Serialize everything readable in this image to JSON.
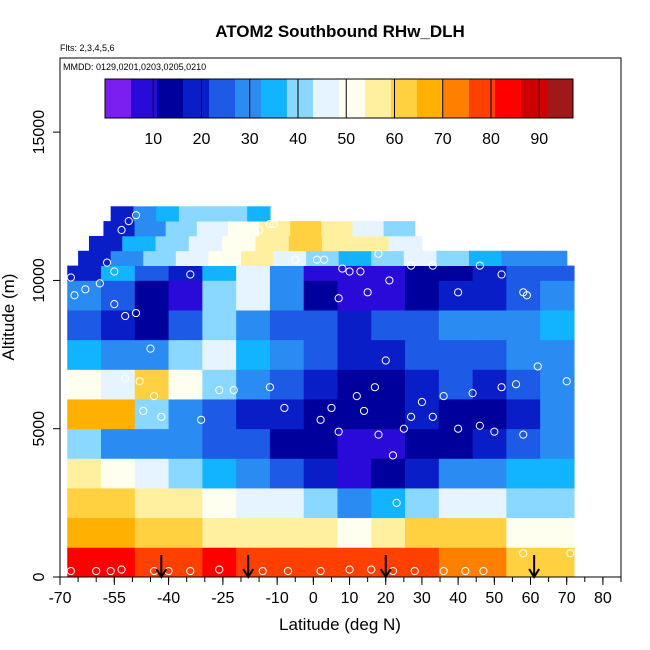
{
  "chart_data": {
    "type": "heatmap",
    "title": "ATOM2 Southbound RHw_DLH",
    "flights_note": "Flts: 2,3,4,5,6",
    "dates_note": "MMDD: 0129,0201,0203,0205,0210",
    "xlabel": "Latitude (deg N)",
    "ylabel": "Altitude (m)",
    "xlim": [
      -70,
      85
    ],
    "ylim": [
      0,
      17500
    ],
    "x_ticks": [
      -70,
      -55,
      -40,
      -25,
      -10,
      0,
      10,
      20,
      30,
      40,
      50,
      60,
      70,
      80
    ],
    "x_tick_labels": [
      "-70",
      "-55",
      "-40",
      "-25",
      "-10",
      "0",
      "10",
      "20",
      "30",
      "40",
      "50",
      "60",
      "70",
      "80"
    ],
    "y_ticks": [
      0,
      5000,
      10000,
      15000
    ],
    "y_tick_labels": [
      "0",
      "5000",
      "10000",
      "15000"
    ],
    "colorbar": {
      "min": 0,
      "max": 97,
      "ticks": [
        10,
        20,
        30,
        40,
        50,
        60,
        70,
        80,
        90
      ],
      "tick_labels": [
        "10",
        "20",
        "30",
        "40",
        "50",
        "60",
        "70",
        "80",
        "90"
      ],
      "colors": [
        "#7a1ff0",
        "#2a0ad8",
        "#00009c",
        "#0a1ec8",
        "#1d5ae6",
        "#2a8cf2",
        "#12b4ff",
        "#8ad8ff",
        "#e6f4ff",
        "#fffff0",
        "#fff0a0",
        "#ffd040",
        "#ffb000",
        "#ff8000",
        "#ff4000",
        "#ff0000",
        "#d00000",
        "#a01818"
      ]
    },
    "field_bands": [
      {
        "alt": [
          0,
          1000
        ],
        "lat": [
          -68,
          72
        ],
        "values": [
          82,
          82,
          80,
          80,
          82,
          80,
          78,
          78,
          76,
          78,
          78,
          74,
          72,
          62,
          60
        ]
      },
      {
        "alt": [
          1000,
          2000
        ],
        "lat": [
          -68,
          72
        ],
        "values": [
          70,
          68,
          64,
          60,
          58,
          56,
          56,
          54,
          50,
          56,
          60,
          62,
          60,
          52,
          50
        ]
      },
      {
        "alt": [
          2000,
          3000
        ],
        "lat": [
          -68,
          72
        ],
        "values": [
          62,
          60,
          58,
          54,
          50,
          48,
          44,
          40,
          28,
          34,
          40,
          44,
          46,
          42,
          40
        ]
      },
      {
        "alt": [
          3000,
          4000
        ],
        "lat": [
          -68,
          72
        ],
        "values": [
          56,
          50,
          44,
          40,
          36,
          30,
          26,
          20,
          10,
          14,
          20,
          28,
          30,
          34,
          36
        ]
      },
      {
        "alt": [
          4000,
          5000
        ],
        "lat": [
          -68,
          72
        ],
        "values": [
          40,
          32,
          30,
          28,
          26,
          22,
          16,
          12,
          8,
          10,
          14,
          16,
          20,
          26,
          30
        ]
      },
      {
        "alt": [
          5000,
          6000
        ],
        "lat": [
          -68,
          72
        ],
        "values": [
          66,
          70,
          40,
          30,
          24,
          20,
          18,
          14,
          12,
          14,
          18,
          16,
          14,
          20,
          28
        ]
      },
      {
        "alt": [
          6000,
          7000
        ],
        "lat": [
          -68,
          72
        ],
        "values": [
          52,
          46,
          60,
          50,
          40,
          32,
          26,
          18,
          14,
          16,
          20,
          22,
          18,
          24,
          30
        ]
      },
      {
        "alt": [
          7000,
          8000
        ],
        "lat": [
          -68,
          72
        ],
        "values": [
          34,
          30,
          28,
          40,
          44,
          36,
          30,
          24,
          18,
          20,
          24,
          26,
          24,
          28,
          32
        ]
      },
      {
        "alt": [
          8000,
          9000
        ],
        "lat": [
          -68,
          72
        ],
        "values": [
          26,
          18,
          16,
          22,
          40,
          30,
          24,
          22,
          20,
          22,
          26,
          30,
          28,
          30,
          34
        ]
      },
      {
        "alt": [
          9000,
          10000
        ],
        "lat": [
          -68,
          72
        ],
        "values": [
          30,
          24,
          14,
          10,
          38,
          44,
          28,
          12,
          8,
          10,
          14,
          18,
          20,
          24,
          28
        ]
      },
      {
        "alt": [
          10000,
          10500
        ],
        "lat": [
          -68,
          72
        ],
        "values": [
          20,
          36,
          24,
          18,
          34,
          46,
          30,
          10,
          6,
          8,
          12,
          16,
          18,
          22,
          26
        ]
      },
      {
        "alt": [
          10500,
          11000
        ],
        "lat": [
          -65,
          70
        ],
        "values": [
          18,
          30,
          40,
          44,
          50,
          56,
          46,
          40,
          36,
          38,
          44,
          40,
          34,
          30,
          28
        ]
      },
      {
        "alt": [
          11000,
          11500
        ],
        "lat": [
          -62,
          30
        ],
        "values": [
          20,
          34,
          40,
          46,
          52,
          58,
          62,
          58,
          54,
          48
        ]
      },
      {
        "alt": [
          11500,
          12000
        ],
        "lat": [
          -58,
          28
        ],
        "values": [
          18,
          30,
          38,
          44,
          50,
          56,
          60,
          54,
          44,
          38
        ]
      },
      {
        "alt": [
          12000,
          12500
        ],
        "lat": [
          -56,
          -12
        ],
        "values": [
          20,
          28,
          34,
          38,
          42,
          40,
          36
        ]
      }
    ],
    "sample_points": [
      {
        "lat": -67,
        "alt": 10100
      },
      {
        "lat": -66,
        "alt": 9500
      },
      {
        "lat": -63,
        "alt": 9700
      },
      {
        "lat": -59,
        "alt": 9900
      },
      {
        "lat": -57,
        "alt": 10600
      },
      {
        "lat": -55,
        "alt": 10300
      },
      {
        "lat": -53,
        "alt": 11700
      },
      {
        "lat": -51,
        "alt": 12000
      },
      {
        "lat": -49,
        "alt": 12200
      },
      {
        "lat": -55,
        "alt": 9200
      },
      {
        "lat": -52,
        "alt": 8800
      },
      {
        "lat": -49,
        "alt": 8900
      },
      {
        "lat": -45,
        "alt": 7700
      },
      {
        "lat": -52,
        "alt": 6700
      },
      {
        "lat": -48,
        "alt": 6600
      },
      {
        "lat": -44,
        "alt": 6100
      },
      {
        "lat": -47,
        "alt": 5600
      },
      {
        "lat": -42,
        "alt": 5400
      },
      {
        "lat": -36,
        "alt": 6500
      },
      {
        "lat": -31,
        "alt": 5300
      },
      {
        "lat": -26,
        "alt": 6300
      },
      {
        "lat": -22,
        "alt": 6300
      },
      {
        "lat": -12,
        "alt": 6400
      },
      {
        "lat": -8,
        "alt": 5700
      },
      {
        "lat": 2,
        "alt": 5300
      },
      {
        "lat": 5,
        "alt": 5700
      },
      {
        "lat": 7,
        "alt": 4900
      },
      {
        "lat": 12,
        "alt": 6100
      },
      {
        "lat": 14,
        "alt": 5600
      },
      {
        "lat": 17,
        "alt": 6400
      },
      {
        "lat": 18,
        "alt": 4800
      },
      {
        "lat": 20,
        "alt": 7300
      },
      {
        "lat": 22,
        "alt": 4100
      },
      {
        "lat": 23,
        "alt": 2500
      },
      {
        "lat": 25,
        "alt": 5000
      },
      {
        "lat": 27,
        "alt": 5400
      },
      {
        "lat": 30,
        "alt": 5900
      },
      {
        "lat": 33,
        "alt": 5400
      },
      {
        "lat": 36,
        "alt": 6100
      },
      {
        "lat": 40,
        "alt": 5000
      },
      {
        "lat": 44,
        "alt": 6200
      },
      {
        "lat": 46,
        "alt": 5100
      },
      {
        "lat": 50,
        "alt": 4900
      },
      {
        "lat": 52,
        "alt": 6400
      },
      {
        "lat": 56,
        "alt": 6500
      },
      {
        "lat": 58,
        "alt": 4800
      },
      {
        "lat": 62,
        "alt": 7100
      },
      {
        "lat": 70,
        "alt": 6600
      },
      {
        "lat": -5,
        "alt": 10700
      },
      {
        "lat": 1,
        "alt": 10700
      },
      {
        "lat": 3,
        "alt": 10700
      },
      {
        "lat": 8,
        "alt": 10400
      },
      {
        "lat": 10,
        "alt": 10300
      },
      {
        "lat": 13,
        "alt": 10300
      },
      {
        "lat": 15,
        "alt": 9600
      },
      {
        "lat": 18,
        "alt": 10900
      },
      {
        "lat": 21,
        "alt": 10000
      },
      {
        "lat": 27,
        "alt": 10500
      },
      {
        "lat": 33,
        "alt": 10500
      },
      {
        "lat": 40,
        "alt": 9600
      },
      {
        "lat": 46,
        "alt": 10500
      },
      {
        "lat": 52,
        "alt": 10200
      },
      {
        "lat": 58,
        "alt": 9600
      },
      {
        "lat": 59,
        "alt": 9500
      },
      {
        "lat": 63,
        "alt": 11200
      },
      {
        "lat": 65,
        "alt": 11300
      },
      {
        "lat": -15,
        "alt": 11700
      },
      {
        "lat": -12,
        "alt": 11900
      },
      {
        "lat": -11,
        "alt": 11900
      },
      {
        "lat": -34,
        "alt": 10200
      },
      {
        "lat": 7,
        "alt": 9400
      },
      {
        "lat": -67,
        "alt": 200
      },
      {
        "lat": -60,
        "alt": 200
      },
      {
        "lat": -56,
        "alt": 200
      },
      {
        "lat": -53,
        "alt": 250
      },
      {
        "lat": -44,
        "alt": 200
      },
      {
        "lat": -40,
        "alt": 200
      },
      {
        "lat": -34,
        "alt": 200
      },
      {
        "lat": -26,
        "alt": 250
      },
      {
        "lat": -14,
        "alt": 200
      },
      {
        "lat": -7,
        "alt": 200
      },
      {
        "lat": 2,
        "alt": 200
      },
      {
        "lat": 10,
        "alt": 250
      },
      {
        "lat": 16,
        "alt": 250
      },
      {
        "lat": 22,
        "alt": 200
      },
      {
        "lat": 28,
        "alt": 200
      },
      {
        "lat": 36,
        "alt": 200
      },
      {
        "lat": 42,
        "alt": 200
      },
      {
        "lat": 47,
        "alt": 200
      },
      {
        "lat": 58,
        "alt": 800
      },
      {
        "lat": 71,
        "alt": 800
      }
    ],
    "arrow_markers_lat": [
      -42,
      -18,
      20,
      61
    ]
  }
}
